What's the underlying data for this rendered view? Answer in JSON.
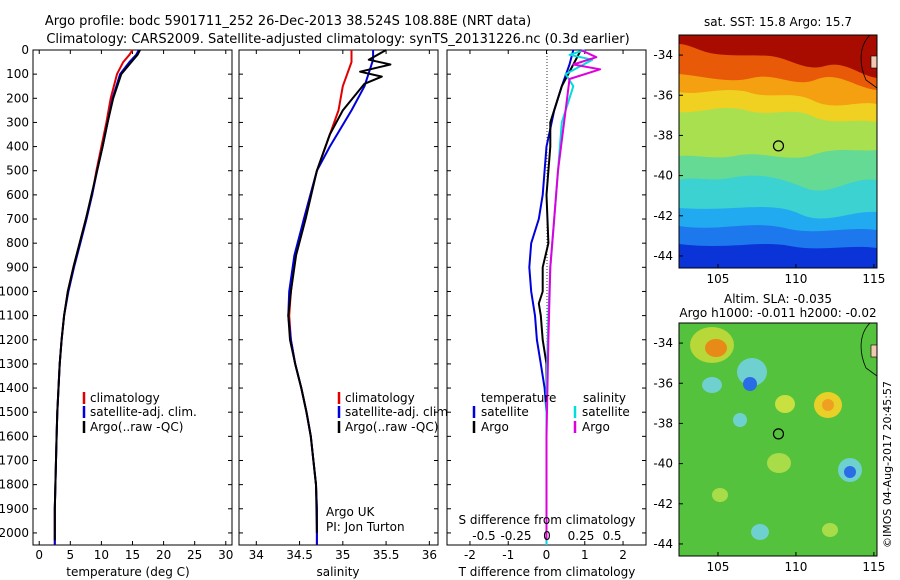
{
  "header": {
    "title_line1": "Argo profile: bodc 5901711_252 26-Dec-2013 38.524S 108.88E (NRT data)",
    "title_line2": "Climatology: CARS2009. Satellite-adjusted climatology: synTS_20131226.nc (0.3d earlier)"
  },
  "watermark": "©IMOS 04-Aug-2017 20:45:57",
  "colors": {
    "climatology": "#e00000",
    "satellite": "#0000dd",
    "argo": "#000000",
    "salinity_satellite": "#00dddd",
    "salinity_argo": "#dd00dd",
    "circle_marker": "#000000"
  },
  "chart_data": [
    {
      "name": "temperature",
      "type": "line",
      "xlabel": "temperature (deg C)",
      "ylabel": "",
      "xlim": [
        -1,
        31
      ],
      "ylim": [
        2050,
        0
      ],
      "xticks": [
        0,
        5,
        10,
        15,
        20,
        25,
        30
      ],
      "yticks": [
        0,
        100,
        200,
        300,
        400,
        500,
        600,
        700,
        800,
        900,
        1000,
        1100,
        1200,
        1300,
        1400,
        1500,
        1600,
        1700,
        1800,
        1900,
        2000
      ],
      "legend": [
        "climatology",
        "satellite-adj. clim.",
        "Argo(..raw -QC)"
      ],
      "series": [
        {
          "name": "climatology",
          "color_key": "climatology",
          "x": [
            15.0,
            14.5,
            13.5,
            12.5,
            11.5,
            10.8,
            10.0,
            9.2,
            8.5,
            7.5,
            6.5,
            5.5,
            4.6,
            4.0,
            3.6,
            3.3,
            3.1,
            2.9,
            2.8,
            2.7,
            2.6,
            2.5,
            2.5
          ],
          "y": [
            0,
            20,
            50,
            100,
            200,
            300,
            400,
            500,
            600,
            700,
            800,
            900,
            1000,
            1100,
            1200,
            1300,
            1400,
            1500,
            1600,
            1700,
            1800,
            1900,
            2050
          ]
        },
        {
          "name": "satellite-adj. clim.",
          "color_key": "satellite",
          "x": [
            16.0,
            15.6,
            14.5,
            13.0,
            11.8,
            11.0,
            10.2,
            9.3,
            8.5,
            7.6,
            6.6,
            5.6,
            4.7,
            4.0,
            3.6,
            3.3,
            3.1,
            2.9,
            2.8,
            2.7,
            2.6,
            2.5,
            2.5
          ],
          "y": [
            0,
            20,
            50,
            100,
            200,
            300,
            400,
            500,
            600,
            700,
            800,
            900,
            1000,
            1100,
            1200,
            1300,
            1400,
            1500,
            1600,
            1700,
            1800,
            1900,
            2050
          ]
        },
        {
          "name": "Argo(..raw -QC)",
          "color_key": "argo",
          "x": [
            16.2,
            15.8,
            14.8,
            13.2,
            11.9,
            11.0,
            10.2,
            9.3,
            8.4,
            7.5,
            6.5,
            5.5,
            4.6,
            4.0,
            3.6,
            3.3,
            3.1,
            2.9,
            2.8,
            2.7,
            2.6,
            2.5,
            2.5
          ],
          "y": [
            0,
            20,
            50,
            100,
            200,
            300,
            400,
            500,
            600,
            700,
            800,
            900,
            1000,
            1100,
            1200,
            1300,
            1400,
            1500,
            1600,
            1700,
            1800,
            1900,
            2030
          ]
        }
      ]
    },
    {
      "name": "salinity",
      "type": "line",
      "xlabel": "salinity",
      "ylabel": "",
      "xlim": [
        33.8,
        36.1
      ],
      "ylim": [
        2050,
        0
      ],
      "xticks": [
        34,
        34.5,
        35,
        35.5,
        36
      ],
      "legend": [
        "climatology",
        "satellite-adj. clim.",
        "Argo(..raw -QC)"
      ],
      "annotation": [
        "Argo UK",
        "PI: Jon Turton"
      ],
      "series": [
        {
          "name": "climatology",
          "color_key": "climatology",
          "x": [
            35.1,
            35.1,
            35.0,
            34.95,
            34.8,
            34.7,
            34.55,
            34.45,
            34.4,
            34.38,
            34.4,
            34.45,
            34.52,
            34.58,
            34.63,
            34.66,
            34.69,
            34.7,
            34.7
          ],
          "y": [
            0,
            50,
            150,
            250,
            400,
            500,
            700,
            850,
            1000,
            1100,
            1200,
            1300,
            1400,
            1500,
            1600,
            1700,
            1800,
            1900,
            2050
          ]
        },
        {
          "name": "satellite-adj. clim.",
          "color_key": "satellite",
          "x": [
            35.35,
            35.35,
            35.25,
            35.1,
            34.85,
            34.7,
            34.55,
            34.44,
            34.38,
            34.37,
            34.4,
            34.45,
            34.52,
            34.58,
            34.63,
            34.66,
            34.69,
            34.7,
            34.7
          ],
          "y": [
            0,
            40,
            150,
            250,
            400,
            500,
            700,
            850,
            1000,
            1100,
            1200,
            1300,
            1400,
            1500,
            1600,
            1700,
            1800,
            1900,
            2050
          ]
        },
        {
          "name": "Argo(..raw -QC)",
          "color_key": "argo",
          "x": [
            35.5,
            35.3,
            35.55,
            35.2,
            35.45,
            35.25,
            35.0,
            34.85,
            34.7,
            34.57,
            34.46,
            34.4,
            34.37,
            34.39,
            34.45,
            34.52,
            34.58,
            34.63,
            34.66,
            34.69,
            34.7
          ],
          "y": [
            0,
            40,
            60,
            90,
            110,
            140,
            250,
            350,
            500,
            700,
            850,
            1000,
            1100,
            1200,
            1300,
            1400,
            1500,
            1600,
            1700,
            1800,
            2000
          ]
        }
      ]
    },
    {
      "name": "difference",
      "type": "line",
      "xlabel": "T difference from climatology",
      "xlabel_top": "S difference from climatology",
      "xlim": [
        -2.6,
        2.6
      ],
      "ylim": [
        2050,
        0
      ],
      "xticks": [
        -2,
        -1,
        0,
        1,
        2
      ],
      "top_tick_labels": [
        "-0.5",
        "-0.25",
        "0",
        "0.25",
        "0.5"
      ],
      "legend_temperature": [
        "temperature",
        "satellite",
        "Argo"
      ],
      "legend_salinity": [
        "salinity",
        "satellite",
        "Argo"
      ],
      "series": [
        {
          "name": "temperature satellite",
          "color_key": "satellite",
          "x": [
            0.7,
            0.6,
            0.4,
            0.2,
            0.0,
            -0.05,
            -0.1,
            -0.2,
            -0.4,
            -0.45,
            -0.4,
            -0.3,
            -0.25,
            -0.15,
            -0.05,
            0.0,
            0.0,
            0.0,
            0.0
          ],
          "y": [
            0,
            60,
            150,
            250,
            400,
            500,
            600,
            700,
            800,
            900,
            1000,
            1100,
            1200,
            1300,
            1400,
            1500,
            1700,
            1900,
            2050
          ]
        },
        {
          "name": "temperature Argo",
          "color_key": "argo",
          "x": [
            0.9,
            0.7,
            0.4,
            0.1,
            0.1,
            0.0,
            0.05,
            -0.1,
            -0.1,
            -0.2,
            -0.15,
            -0.1,
            0.0,
            0.0,
            0.0,
            0.0
          ],
          "y": [
            0,
            60,
            150,
            300,
            400,
            600,
            800,
            900,
            1000,
            1050,
            1100,
            1200,
            1300,
            1500,
            1800,
            2030
          ]
        },
        {
          "name": "salinity satellite",
          "color_key": "salinity_satellite",
          "x": [
            1.0,
            0.6,
            1.2,
            0.5,
            0.7,
            0.4,
            0.3,
            0.2,
            0.1,
            0.05,
            0.0,
            0.0,
            0.0
          ],
          "y": [
            0,
            20,
            40,
            100,
            150,
            300,
            500,
            700,
            900,
            1100,
            1400,
            1700,
            2050
          ]
        },
        {
          "name": "salinity Argo",
          "color_key": "salinity_argo",
          "x": [
            0.9,
            1.3,
            0.7,
            1.4,
            0.6,
            0.5,
            0.3,
            0.2,
            0.1,
            0.05,
            0.0,
            0.0
          ],
          "y": [
            0,
            30,
            60,
            80,
            120,
            250,
            500,
            700,
            900,
            1200,
            1600,
            2030
          ]
        }
      ]
    },
    {
      "name": "sst_map",
      "type": "heatmap",
      "title": "sat. SST: 15.8 Argo: 15.7",
      "xlim": [
        102.5,
        115.2
      ],
      "ylim": [
        -44.6,
        -33
      ],
      "xticks": [
        105,
        110,
        115
      ],
      "yticks": [
        -34,
        -36,
        -38,
        -40,
        -42,
        -44
      ],
      "marker": {
        "lon": 108.88,
        "lat": -38.52
      }
    },
    {
      "name": "sla_map",
      "type": "heatmap",
      "title_line1": "Altim. SLA: -0.035",
      "title_line2": "Argo h1000: -0.011 h2000: -0.02",
      "xlim": [
        102.5,
        115.2
      ],
      "ylim": [
        -44.6,
        -33
      ],
      "xticks": [
        105,
        110,
        115
      ],
      "yticks": [
        -34,
        -36,
        -38,
        -40,
        -42,
        -44
      ],
      "marker": {
        "lon": 108.88,
        "lat": -38.52
      }
    }
  ]
}
